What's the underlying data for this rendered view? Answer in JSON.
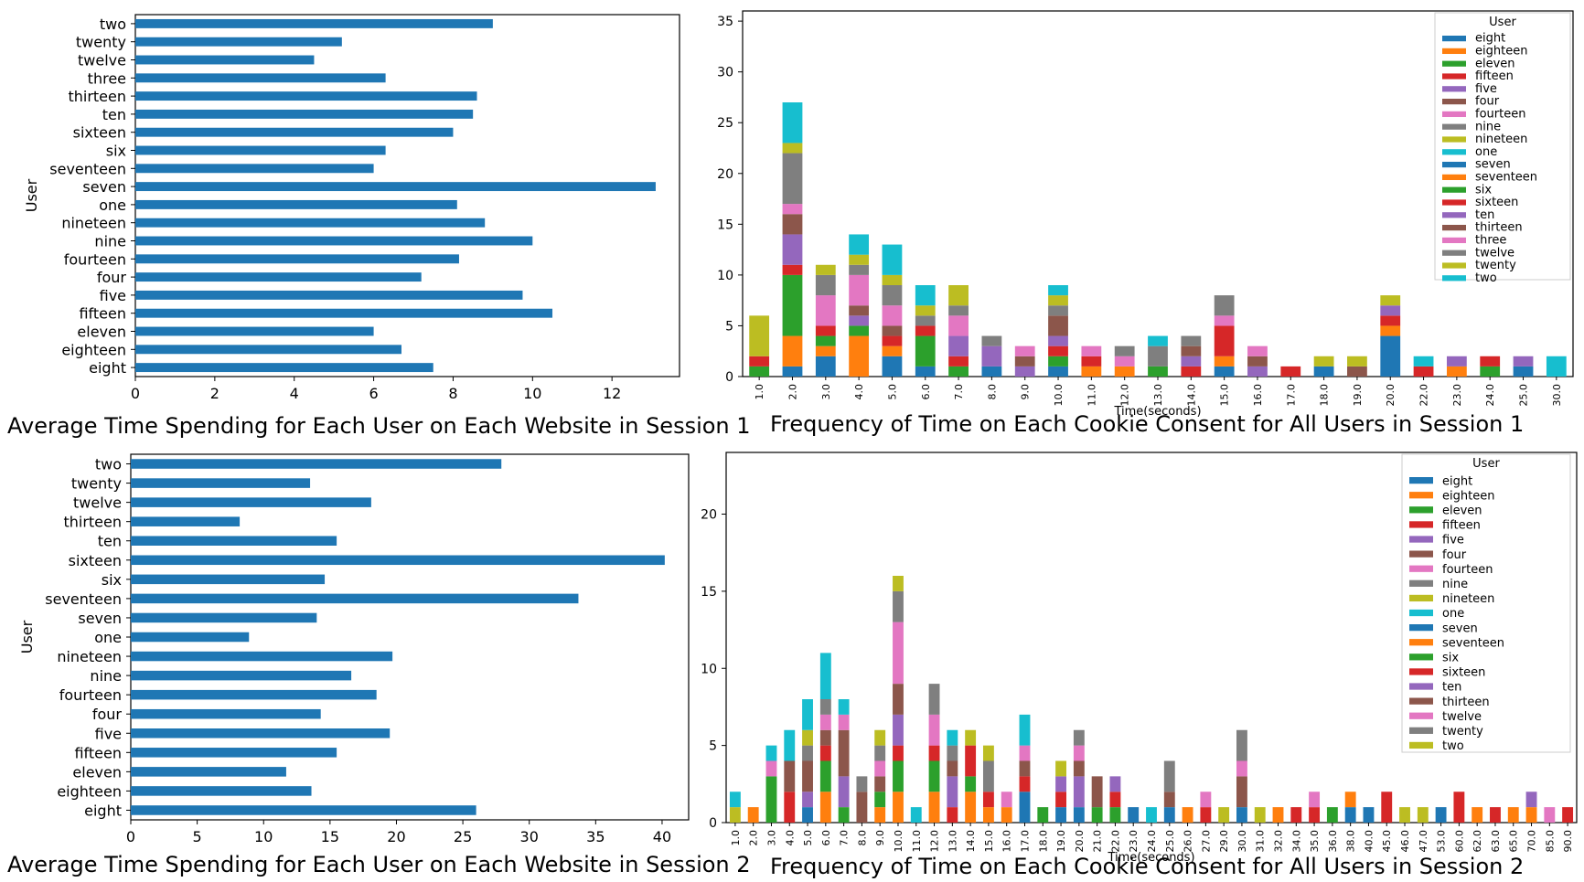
{
  "captions": {
    "c1": "Average Time Spending for Each User on Each Website in Session 1",
    "c2": "Frequency of Time on Each Cookie Consent for All Users in Session 1",
    "c3": "Average Time Spending for Each User on Each Website in Session 2",
    "c4": "Frequency of Time on Each Cookie Consent for All Users in Session 2"
  },
  "chart_data": [
    {
      "type": "bar",
      "orientation": "horizontal",
      "ylabel": "User",
      "xlabel": "",
      "xlim": [
        0,
        13.7
      ],
      "xticks": [
        0,
        2,
        4,
        6,
        8,
        10,
        12
      ],
      "color": "#1f77b4",
      "categories": [
        "eight",
        "eighteen",
        "eleven",
        "fifteen",
        "five",
        "four",
        "fourteen",
        "nine",
        "nineteen",
        "one",
        "seven",
        "seventeen",
        "six",
        "sixteen",
        "ten",
        "thirteen",
        "three",
        "twelve",
        "twenty",
        "two"
      ],
      "values": [
        7.5,
        6.7,
        6.0,
        10.5,
        9.75,
        7.2,
        8.15,
        10.0,
        8.8,
        8.1,
        13.1,
        6.0,
        6.3,
        8.0,
        8.5,
        8.6,
        6.3,
        4.5,
        5.2,
        9.0
      ]
    },
    {
      "type": "bar",
      "stacked": true,
      "xlabel": "Time(seconds)",
      "ylabel": "",
      "ylim": [
        0,
        36
      ],
      "yticks": [
        0,
        5,
        10,
        15,
        20,
        25,
        30,
        35
      ],
      "legend_title": "User",
      "legend_position": "top-right",
      "categories": [
        "1.0",
        "2.0",
        "3.0",
        "4.0",
        "5.0",
        "6.0",
        "7.0",
        "8.0",
        "9.0",
        "10.0",
        "11.0",
        "12.0",
        "13.0",
        "14.0",
        "15.0",
        "16.0",
        "17.0",
        "18.0",
        "19.0",
        "20.0",
        "22.0",
        "23.0",
        "24.0",
        "25.0",
        "30.0"
      ],
      "series": [
        {
          "name": "eight",
          "color": "#1f77b4",
          "values": [
            0,
            1,
            2,
            0,
            2,
            1,
            0,
            1,
            0,
            1,
            0,
            0,
            0,
            0,
            1,
            0,
            0,
            1,
            0,
            4,
            0,
            0,
            0,
            1,
            0
          ]
        },
        {
          "name": "eighteen",
          "color": "#ff7f0e",
          "values": [
            0,
            3,
            1,
            4,
            1,
            0,
            0,
            0,
            0,
            0,
            1,
            1,
            0,
            0,
            1,
            0,
            0,
            0,
            0,
            1,
            0,
            1,
            0,
            0,
            0
          ]
        },
        {
          "name": "eleven",
          "color": "#2ca02c",
          "values": [
            1,
            6,
            1,
            1,
            0,
            3,
            1,
            0,
            0,
            1,
            0,
            0,
            1,
            0,
            0,
            0,
            0,
            0,
            0,
            0,
            0,
            0,
            1,
            0,
            0
          ]
        },
        {
          "name": "fifteen",
          "color": "#d62728",
          "values": [
            1,
            1,
            1,
            0,
            1,
            1,
            1,
            0,
            0,
            1,
            1,
            0,
            0,
            1,
            3,
            0,
            1,
            0,
            0,
            1,
            1,
            0,
            1,
            0,
            0
          ]
        },
        {
          "name": "five",
          "color": "#9467bd",
          "values": [
            0,
            3,
            0,
            1,
            0,
            0,
            2,
            2,
            1,
            1,
            0,
            0,
            0,
            1,
            0,
            1,
            0,
            0,
            0,
            1,
            0,
            1,
            0,
            1,
            0
          ]
        },
        {
          "name": "four",
          "color": "#8c564b",
          "values": [
            0,
            2,
            0,
            1,
            1,
            0,
            0,
            0,
            1,
            2,
            0,
            0,
            0,
            1,
            0,
            1,
            0,
            0,
            1,
            0,
            0,
            0,
            0,
            0,
            0
          ]
        },
        {
          "name": "fourteen",
          "color": "#e377c2",
          "values": [
            0,
            1,
            3,
            3,
            2,
            0,
            2,
            0,
            1,
            0,
            1,
            1,
            0,
            0,
            1,
            1,
            0,
            0,
            0,
            0,
            0,
            0,
            0,
            0,
            0
          ]
        },
        {
          "name": "nine",
          "color": "#7f7f7f",
          "values": [
            0,
            5,
            2,
            1,
            2,
            1,
            1,
            1,
            0,
            1,
            0,
            1,
            2,
            1,
            2,
            0,
            0,
            0,
            0,
            0,
            0,
            0,
            0,
            0,
            0
          ]
        },
        {
          "name": "nineteen",
          "color": "#bcbd22",
          "values": [
            4,
            1,
            1,
            1,
            1,
            1,
            2,
            0,
            0,
            1,
            0,
            0,
            0,
            0,
            0,
            0,
            0,
            1,
            1,
            1,
            0,
            0,
            0,
            0,
            0
          ]
        },
        {
          "name": "one",
          "color": "#17becf",
          "values": [
            0,
            4,
            0,
            2,
            3,
            2,
            0,
            0,
            0,
            1,
            0,
            0,
            1,
            0,
            0,
            0,
            0,
            0,
            0,
            0,
            1,
            0,
            0,
            0,
            2
          ]
        }
      ]
    },
    {
      "type": "bar",
      "orientation": "horizontal",
      "ylabel": "User",
      "xlabel": "",
      "xlim": [
        0,
        42
      ],
      "xticks": [
        0,
        5,
        10,
        15,
        20,
        25,
        30,
        35,
        40
      ],
      "color": "#1f77b4",
      "categories": [
        "eight",
        "eighteen",
        "eleven",
        "fifteen",
        "five",
        "four",
        "fourteen",
        "nine",
        "nineteen",
        "one",
        "seven",
        "seventeen",
        "six",
        "sixteen",
        "ten",
        "thirteen",
        "twelve",
        "twenty",
        "two"
      ],
      "values": [
        26.0,
        13.6,
        11.7,
        15.5,
        19.5,
        14.3,
        18.5,
        16.6,
        19.7,
        8.9,
        14.0,
        33.7,
        14.6,
        40.2,
        15.5,
        8.2,
        18.1,
        13.5,
        27.9
      ]
    },
    {
      "type": "bar",
      "stacked": true,
      "xlabel": "Time(seconds)",
      "ylabel": "",
      "ylim": [
        0,
        24
      ],
      "yticks": [
        0,
        5,
        10,
        15,
        20
      ],
      "legend_title": "User",
      "legend_position": "top-right",
      "categories": [
        "1.0",
        "2.0",
        "3.0",
        "4.0",
        "5.0",
        "6.0",
        "7.0",
        "8.0",
        "9.0",
        "10.0",
        "11.0",
        "12.0",
        "13.0",
        "14.0",
        "15.0",
        "16.0",
        "17.0",
        "18.0",
        "19.0",
        "20.0",
        "21.0",
        "22.0",
        "23.0",
        "24.0",
        "25.0",
        "26.0",
        "27.0",
        "29.0",
        "30.0",
        "31.0",
        "32.0",
        "34.0",
        "35.0",
        "36.0",
        "38.0",
        "40.0",
        "45.0",
        "46.0",
        "47.0",
        "53.0",
        "60.0",
        "62.0",
        "63.0",
        "65.0",
        "70.0",
        "85.0",
        "90.0"
      ],
      "series": [
        {
          "name": "eight",
          "color": "#1f77b4",
          "values": [
            0,
            0,
            0,
            0,
            1,
            0,
            0,
            0,
            0,
            0,
            0,
            0,
            0,
            0,
            0,
            0,
            2,
            0,
            1,
            1,
            0,
            0,
            1,
            0,
            1,
            0,
            0,
            0,
            1,
            0,
            0,
            0,
            0,
            0,
            1,
            1,
            0,
            0,
            0,
            1,
            0,
            0,
            0,
            0,
            0,
            0,
            0
          ]
        },
        {
          "name": "eighteen",
          "color": "#ff7f0e",
          "values": [
            0,
            1,
            0,
            0,
            0,
            2,
            0,
            0,
            1,
            2,
            0,
            2,
            0,
            2,
            1,
            1,
            0,
            0,
            0,
            0,
            0,
            0,
            0,
            0,
            0,
            1,
            0,
            0,
            0,
            0,
            1,
            0,
            0,
            0,
            1,
            0,
            0,
            0,
            0,
            0,
            0,
            1,
            0,
            1,
            1,
            0,
            0
          ]
        },
        {
          "name": "eleven",
          "color": "#2ca02c",
          "values": [
            0,
            0,
            3,
            0,
            0,
            2,
            1,
            0,
            1,
            2,
            0,
            2,
            0,
            1,
            0,
            0,
            0,
            1,
            0,
            0,
            1,
            1,
            0,
            0,
            0,
            0,
            0,
            0,
            0,
            0,
            0,
            0,
            0,
            1,
            0,
            0,
            0,
            0,
            0,
            0,
            0,
            0,
            0,
            0,
            0,
            0,
            0
          ]
        },
        {
          "name": "fifteen",
          "color": "#d62728",
          "values": [
            0,
            0,
            0,
            2,
            0,
            1,
            0,
            0,
            0,
            1,
            0,
            1,
            1,
            2,
            1,
            0,
            1,
            0,
            1,
            0,
            0,
            1,
            0,
            0,
            0,
            0,
            1,
            0,
            0,
            0,
            0,
            1,
            1,
            0,
            0,
            0,
            2,
            0,
            0,
            0,
            2,
            0,
            1,
            0,
            0,
            0,
            1
          ]
        },
        {
          "name": "five",
          "color": "#9467bd",
          "values": [
            0,
            0,
            0,
            0,
            1,
            0,
            2,
            0,
            0,
            2,
            0,
            0,
            2,
            0,
            0,
            0,
            0,
            0,
            1,
            2,
            0,
            1,
            0,
            0,
            0,
            0,
            0,
            0,
            0,
            0,
            0,
            0,
            0,
            0,
            0,
            0,
            0,
            0,
            0,
            0,
            0,
            0,
            0,
            0,
            1,
            0,
            0
          ]
        },
        {
          "name": "four",
          "color": "#8c564b",
          "values": [
            0,
            0,
            0,
            2,
            2,
            1,
            3,
            2,
            1,
            2,
            0,
            0,
            1,
            0,
            0,
            0,
            1,
            0,
            0,
            1,
            2,
            0,
            0,
            0,
            1,
            0,
            0,
            0,
            2,
            0,
            0,
            0,
            0,
            0,
            0,
            0,
            0,
            0,
            0,
            0,
            0,
            0,
            0,
            0,
            0,
            0,
            0
          ]
        },
        {
          "name": "fourteen",
          "color": "#e377c2",
          "values": [
            0,
            0,
            1,
            0,
            0,
            1,
            1,
            0,
            1,
            4,
            0,
            2,
            0,
            0,
            0,
            1,
            1,
            0,
            0,
            1,
            0,
            0,
            0,
            0,
            0,
            0,
            1,
            0,
            1,
            0,
            0,
            0,
            1,
            0,
            0,
            0,
            0,
            0,
            0,
            0,
            0,
            0,
            0,
            0,
            0,
            1,
            0
          ]
        },
        {
          "name": "nine",
          "color": "#7f7f7f",
          "values": [
            0,
            0,
            0,
            0,
            1,
            1,
            0,
            1,
            1,
            2,
            0,
            2,
            1,
            0,
            2,
            0,
            0,
            0,
            0,
            1,
            0,
            0,
            0,
            0,
            2,
            0,
            0,
            0,
            2,
            0,
            0,
            0,
            0,
            0,
            0,
            0,
            0,
            0,
            0,
            0,
            0,
            0,
            0,
            0,
            0,
            0,
            0
          ]
        },
        {
          "name": "nineteen",
          "color": "#bcbd22",
          "values": [
            1,
            0,
            0,
            0,
            1,
            0,
            0,
            0,
            1,
            1,
            0,
            0,
            0,
            1,
            1,
            0,
            0,
            0,
            1,
            0,
            0,
            0,
            0,
            0,
            0,
            0,
            0,
            1,
            0,
            1,
            0,
            0,
            0,
            0,
            0,
            0,
            0,
            1,
            1,
            0,
            0,
            0,
            0,
            0,
            0,
            0,
            0
          ]
        },
        {
          "name": "one",
          "color": "#17becf",
          "values": [
            1,
            0,
            1,
            2,
            2,
            3,
            1,
            0,
            0,
            0,
            1,
            0,
            1,
            0,
            0,
            0,
            2,
            0,
            0,
            0,
            0,
            0,
            0,
            1,
            0,
            0,
            0,
            0,
            0,
            0,
            0,
            0,
            0,
            0,
            0,
            0,
            0,
            0,
            0,
            0,
            0,
            0,
            0,
            0,
            0,
            0,
            0
          ]
        }
      ]
    }
  ],
  "legend_entries": [
    "eight",
    "eighteen",
    "eleven",
    "fifteen",
    "five",
    "four",
    "fourteen",
    "nine",
    "nineteen",
    "one",
    "seven",
    "seventeen",
    "six",
    "sixteen",
    "ten",
    "thirteen",
    "three",
    "twelve",
    "twenty",
    "two"
  ],
  "legend_entries_2": [
    "eight",
    "eighteen",
    "eleven",
    "fifteen",
    "five",
    "four",
    "fourteen",
    "nine",
    "nineteen",
    "one",
    "seven",
    "seventeen",
    "six",
    "sixteen",
    "ten",
    "thirteen",
    "twelve",
    "twenty",
    "two"
  ],
  "palette": [
    "#1f77b4",
    "#ff7f0e",
    "#2ca02c",
    "#d62728",
    "#9467bd",
    "#8c564b",
    "#e377c2",
    "#7f7f7f",
    "#bcbd22",
    "#17becf"
  ]
}
